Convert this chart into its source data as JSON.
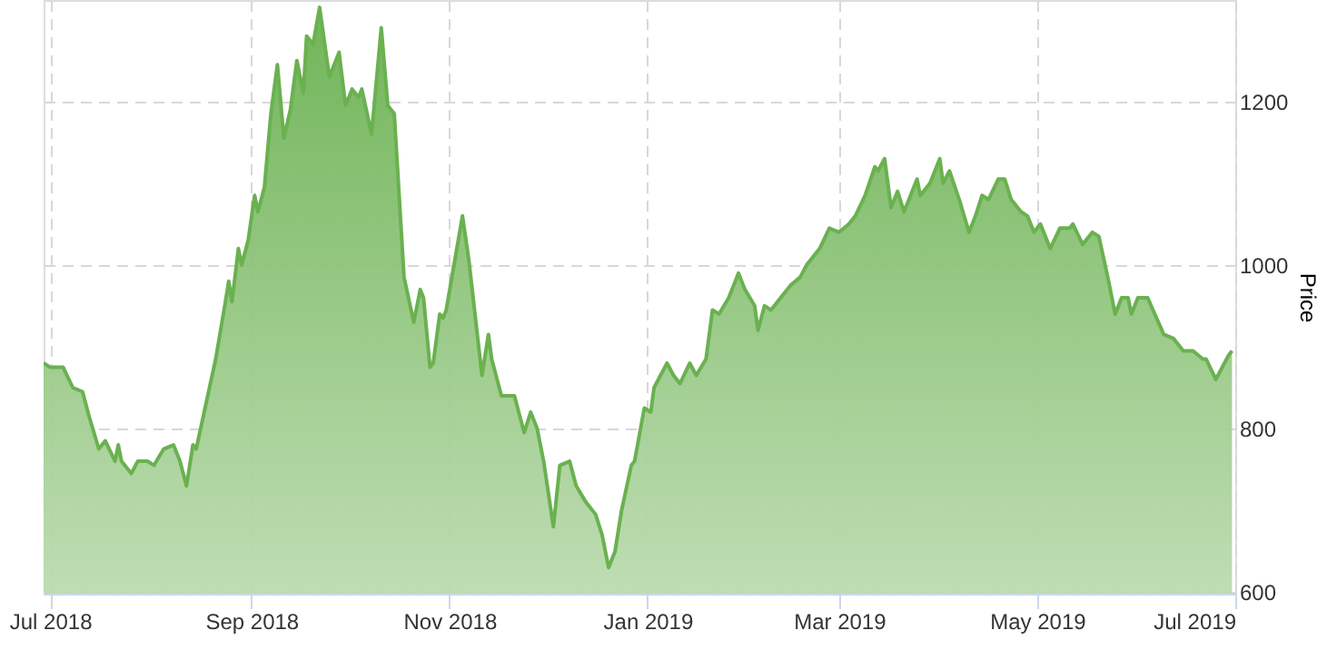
{
  "chart_data": {
    "type": "area",
    "ylabel": "Price",
    "x": [
      "2018-06-29",
      "2018-07-01",
      "2018-07-05",
      "2018-07-08",
      "2018-07-11",
      "2018-07-13",
      "2018-07-16",
      "2018-07-18",
      "2018-07-21",
      "2018-07-22",
      "2018-07-23",
      "2018-07-26",
      "2018-07-28",
      "2018-07-31",
      "2018-08-02",
      "2018-08-05",
      "2018-08-08",
      "2018-08-10",
      "2018-08-12",
      "2018-08-14",
      "2018-08-15",
      "2018-08-18",
      "2018-08-21",
      "2018-08-24",
      "2018-08-25",
      "2018-08-26",
      "2018-08-28",
      "2018-08-29",
      "2018-08-31",
      "2018-09-02",
      "2018-09-03",
      "2018-09-05",
      "2018-09-07",
      "2018-09-09",
      "2018-09-11",
      "2018-09-13",
      "2018-09-15",
      "2018-09-17",
      "2018-09-18",
      "2018-09-20",
      "2018-09-22",
      "2018-09-25",
      "2018-09-28",
      "2018-09-30",
      "2018-10-02",
      "2018-10-04",
      "2018-10-05",
      "2018-10-08",
      "2018-10-11",
      "2018-10-13",
      "2018-10-15",
      "2018-10-18",
      "2018-10-21",
      "2018-10-23",
      "2018-10-24",
      "2018-10-26",
      "2018-10-27",
      "2018-10-29",
      "2018-10-30",
      "2018-10-31",
      "2018-11-05",
      "2018-11-07",
      "2018-11-09",
      "2018-11-11",
      "2018-11-13",
      "2018-11-14",
      "2018-11-17",
      "2018-11-19",
      "2018-11-21",
      "2018-11-24",
      "2018-11-26",
      "2018-11-28",
      "2018-11-30",
      "2018-12-03",
      "2018-12-05",
      "2018-12-08",
      "2018-12-10",
      "2018-12-13",
      "2018-12-16",
      "2018-12-18",
      "2018-12-20",
      "2018-12-22",
      "2018-12-24",
      "2018-12-27",
      "2018-12-28",
      "2018-12-31",
      "2019-01-02",
      "2019-01-03",
      "2019-01-07",
      "2019-01-09",
      "2019-01-11",
      "2019-01-14",
      "2019-01-16",
      "2019-01-19",
      "2019-01-21",
      "2019-01-23",
      "2019-01-26",
      "2019-01-29",
      "2019-01-31",
      "2019-02-03",
      "2019-02-04",
      "2019-02-06",
      "2019-02-08",
      "2019-02-11",
      "2019-02-14",
      "2019-02-17",
      "2019-02-19",
      "2019-02-23",
      "2019-02-26",
      "2019-03-01",
      "2019-03-04",
      "2019-03-06",
      "2019-03-09",
      "2019-03-12",
      "2019-03-13",
      "2019-03-15",
      "2019-03-17",
      "2019-03-19",
      "2019-03-21",
      "2019-03-25",
      "2019-03-26",
      "2019-03-29",
      "2019-04-01",
      "2019-04-02",
      "2019-04-04",
      "2019-04-07",
      "2019-04-10",
      "2019-04-12",
      "2019-04-14",
      "2019-04-16",
      "2019-04-19",
      "2019-04-21",
      "2019-04-23",
      "2019-04-26",
      "2019-04-28",
      "2019-04-30",
      "2019-05-02",
      "2019-05-03",
      "2019-05-05",
      "2019-05-08",
      "2019-05-11",
      "2019-05-12",
      "2019-05-15",
      "2019-05-18",
      "2019-05-20",
      "2019-05-23",
      "2019-05-25",
      "2019-05-27",
      "2019-05-29",
      "2019-05-30",
      "2019-06-01",
      "2019-06-04",
      "2019-06-09",
      "2019-06-12",
      "2019-06-15",
      "2019-06-18",
      "2019-06-21",
      "2019-06-22",
      "2019-06-25",
      "2019-06-29",
      "2019-06-30"
    ],
    "series": [
      {
        "color": "#6ab150",
        "values": [
          880,
          875,
          875,
          850,
          845,
          815,
          775,
          785,
          760,
          780,
          760,
          745,
          760,
          760,
          755,
          775,
          780,
          760,
          730,
          780,
          775,
          830,
          885,
          955,
          980,
          955,
          1020,
          1000,
          1030,
          1085,
          1065,
          1095,
          1185,
          1245,
          1155,
          1190,
          1250,
          1210,
          1280,
          1270,
          1315,
          1230,
          1260,
          1195,
          1215,
          1205,
          1215,
          1160,
          1290,
          1195,
          1185,
          985,
          930,
          970,
          960,
          875,
          880,
          940,
          935,
          945,
          1060,
          1005,
          935,
          865,
          915,
          885,
          840,
          840,
          840,
          795,
          820,
          800,
          760,
          680,
          755,
          760,
          730,
          710,
          695,
          670,
          630,
          650,
          700,
          755,
          760,
          825,
          820,
          850,
          880,
          865,
          855,
          880,
          865,
          885,
          945,
          940,
          960,
          990,
          970,
          950,
          920,
          950,
          945,
          960,
          975,
          985,
          1000,
          1020,
          1045,
          1040,
          1050,
          1060,
          1085,
          1120,
          1115,
          1130,
          1070,
          1090,
          1065,
          1105,
          1085,
          1100,
          1130,
          1100,
          1115,
          1080,
          1040,
          1060,
          1085,
          1080,
          1105,
          1105,
          1080,
          1065,
          1060,
          1040,
          1050,
          1040,
          1020,
          1045,
          1045,
          1050,
          1025,
          1040,
          1035,
          980,
          940,
          960,
          960,
          940,
          960,
          960,
          915,
          910,
          895,
          895,
          885,
          885,
          860,
          890,
          895
        ]
      }
    ],
    "xlim": [
      "2018-06-29",
      "2019-07-01"
    ],
    "xticks": [
      {
        "value": "2018-07-01",
        "label": "Jul 2018"
      },
      {
        "value": "2018-09-01",
        "label": "Sep 2018"
      },
      {
        "value": "2018-11-01",
        "label": "Nov 2018"
      },
      {
        "value": "2019-01-01",
        "label": "Jan 2019"
      },
      {
        "value": "2019-03-01",
        "label": "Mar 2019"
      },
      {
        "value": "2019-05-01",
        "label": "May 2019"
      },
      {
        "value": "2019-07-01",
        "label": "Jul 2019"
      }
    ],
    "ylim": [
      598,
      1324
    ],
    "yticks": [
      600,
      800,
      1000,
      1200
    ],
    "grid": true,
    "legend": false,
    "line_style": "solid"
  }
}
